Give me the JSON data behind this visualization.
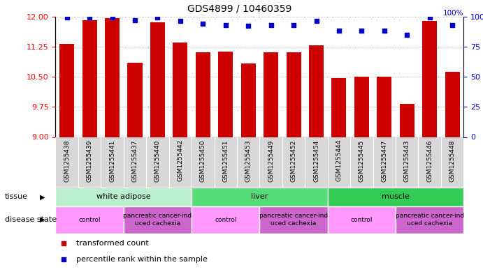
{
  "title": "GDS4899 / 10460359",
  "samples": [
    "GSM1255438",
    "GSM1255439",
    "GSM1255441",
    "GSM1255437",
    "GSM1255440",
    "GSM1255442",
    "GSM1255450",
    "GSM1255451",
    "GSM1255453",
    "GSM1255449",
    "GSM1255452",
    "GSM1255454",
    "GSM1255444",
    "GSM1255445",
    "GSM1255447",
    "GSM1255443",
    "GSM1255446",
    "GSM1255448"
  ],
  "bar_values": [
    11.32,
    11.9,
    11.95,
    10.85,
    11.85,
    11.35,
    11.1,
    11.12,
    10.83,
    11.1,
    11.1,
    11.28,
    10.47,
    10.5,
    10.5,
    9.82,
    11.88,
    10.62
  ],
  "dot_values": [
    99,
    99,
    99,
    97,
    99,
    96,
    94,
    93,
    92,
    93,
    93,
    96,
    88,
    88,
    88,
    85,
    99,
    93
  ],
  "y_min": 9.0,
  "y_max": 12.0,
  "y_ticks": [
    9.0,
    9.75,
    10.5,
    11.25,
    12.0
  ],
  "y2_ticks": [
    0,
    25,
    50,
    75,
    100
  ],
  "bar_color": "#cc0000",
  "dot_color": "#0000cc",
  "tissue_groups": [
    {
      "label": "white adipose",
      "start": 0,
      "end": 6,
      "color": "#aaeebb"
    },
    {
      "label": "liver",
      "start": 6,
      "end": 12,
      "color": "#44dd66"
    },
    {
      "label": "muscle",
      "start": 12,
      "end": 18,
      "color": "#33cc55"
    }
  ],
  "disease_groups": [
    {
      "label": "control",
      "start": 0,
      "end": 3
    },
    {
      "label": "pancreatic cancer-ind\nuced cachexia",
      "start": 3,
      "end": 6
    },
    {
      "label": "control",
      "start": 6,
      "end": 9
    },
    {
      "label": "pancreatic cancer-ind\nuced cachexia",
      "start": 9,
      "end": 12
    },
    {
      "label": "control",
      "start": 12,
      "end": 15
    },
    {
      "label": "pancreatic cancer-ind\nuced cachexia",
      "start": 15,
      "end": 18
    }
  ],
  "control_color": "#ff99ff",
  "cachexia_color": "#cc66cc",
  "tissue_label": "tissue",
  "disease_label": "disease state",
  "legend_bar": "transformed count",
  "legend_dot": "percentile rank within the sample",
  "background_color": "#ffffff",
  "tick_label_fontsize": 6.5,
  "title_fontsize": 10
}
